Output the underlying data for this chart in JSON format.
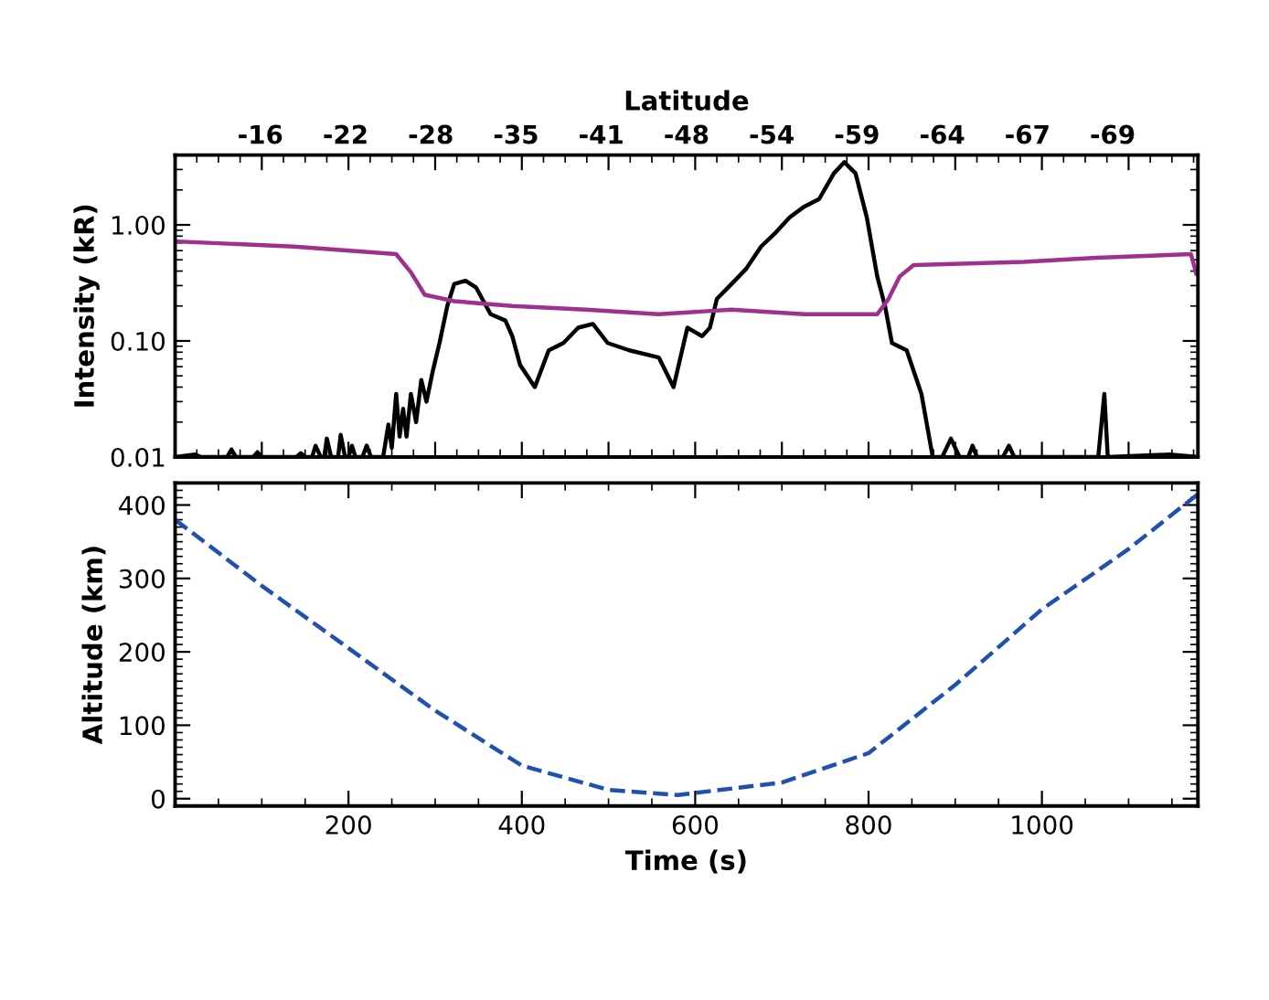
{
  "chart_data": [
    {
      "type": "line",
      "ylabel": "Intensity (kR)",
      "x2label": "Latitude",
      "log": "y",
      "xlim": [
        0,
        1180
      ],
      "ylim": [
        0.01,
        4
      ],
      "yticks": [
        0.01,
        {
          "value": 0.1,
          "label": "0.10"
        },
        {
          "value": 1,
          "label": "1.00"
        }
      ],
      "annotations": [
        "-16",
        "-22",
        "-28",
        "-35",
        "-41",
        "-48",
        "-54",
        "-59",
        "-64",
        "-67",
        "-69"
      ],
      "tick_labels": "y",
      "series": [
        {
          "color": "#000000",
          "x": [
            0,
            23,
            30,
            60,
            65,
            70,
            90,
            95,
            100,
            140,
            145,
            150,
            158,
            162,
            168,
            172,
            175,
            180,
            188,
            191,
            196,
            200,
            204,
            208,
            216,
            221,
            226,
            240,
            246,
            250,
            255,
            259,
            263,
            267,
            272,
            278,
            284,
            290,
            297,
            305,
            314,
            322,
            335,
            347,
            364,
            381,
            389,
            398,
            415,
            431,
            448,
            465,
            482,
            499,
            524,
            558,
            575,
            591,
            608,
            617,
            625,
            642,
            659,
            676,
            693,
            709,
            726,
            743,
            760,
            772,
            785,
            798,
            810,
            819,
            827,
            844,
            861,
            874,
            885,
            895,
            905,
            915,
            920,
            925,
            955,
            962,
            968,
            1065,
            1072,
            1076,
            1147,
            1180
          ],
          "values": [
            0.01,
            0.0105,
            0.01,
            0.01,
            0.0116,
            0.01,
            0.01,
            0.011,
            0.01,
            0.01,
            0.0108,
            0.01,
            0.01,
            0.0125,
            0.01,
            0.01,
            0.0144,
            0.01,
            0.01,
            0.0155,
            0.01,
            0.01,
            0.0125,
            0.01,
            0.01,
            0.0125,
            0.01,
            0.01,
            0.019,
            0.012,
            0.035,
            0.015,
            0.026,
            0.015,
            0.035,
            0.02,
            0.046,
            0.03,
            0.054,
            0.096,
            0.2,
            0.31,
            0.33,
            0.29,
            0.17,
            0.15,
            0.11,
            0.062,
            0.04,
            0.083,
            0.096,
            0.13,
            0.14,
            0.096,
            0.083,
            0.072,
            0.04,
            0.13,
            0.11,
            0.13,
            0.23,
            0.31,
            0.42,
            0.65,
            0.86,
            1.16,
            1.44,
            1.67,
            2.78,
            3.47,
            2.78,
            1.16,
            0.36,
            0.2,
            0.096,
            0.083,
            0.035,
            0.01,
            0.01,
            0.0144,
            0.01,
            0.01,
            0.0125,
            0.01,
            0.01,
            0.0125,
            0.01,
            0.01,
            0.035,
            0.01,
            0.0105,
            0.01
          ]
        },
        {
          "color": "#a0308f",
          "x": [
            2,
            137,
            255,
            272,
            288,
            322,
            389,
            474,
            558,
            642,
            726,
            810,
            823,
            836,
            852,
            979,
            1063,
            1172,
            1178
          ],
          "values": [
            0.72,
            0.65,
            0.56,
            0.39,
            0.25,
            0.22,
            0.2,
            0.186,
            0.17,
            0.186,
            0.17,
            0.17,
            0.23,
            0.36,
            0.45,
            0.48,
            0.52,
            0.56,
            0.38
          ]
        }
      ]
    },
    {
      "type": "line",
      "xlabel": "Time (s)",
      "ylabel": "Altitude (km)",
      "xlim": [
        0,
        1180
      ],
      "ylim": [
        -10,
        430
      ],
      "xticks": [
        200,
        400,
        600,
        800,
        1000
      ],
      "yticks": [
        0,
        100,
        200,
        300,
        400
      ],
      "line_style": "dashed",
      "series": [
        {
          "color": "#2050b0",
          "x": [
            0,
            100,
            200,
            300,
            400,
            500,
            580,
            700,
            800,
            900,
            1000,
            1100,
            1180
          ],
          "values": [
            380,
            290,
            205,
            120,
            45,
            12,
            5,
            22,
            62,
            155,
            258,
            340,
            415
          ]
        }
      ]
    }
  ]
}
